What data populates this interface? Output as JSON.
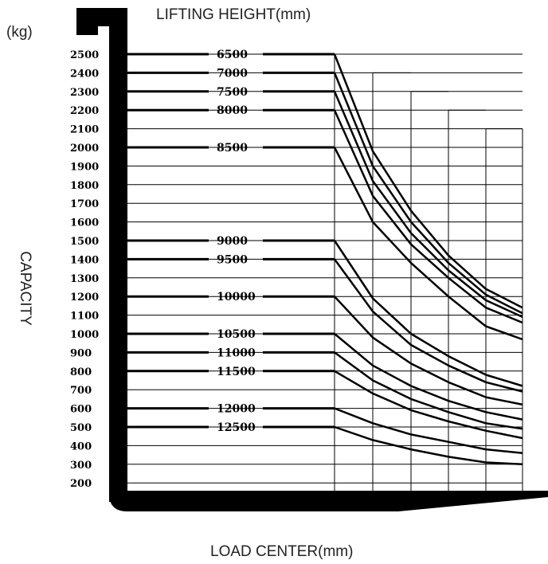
{
  "chart_data": {
    "type": "line",
    "title": "LIFTING HEIGHT(mm)",
    "ylabel": "CAPACITY",
    "yunit": "(kg)",
    "xlabel": "LOAD CENTER(mm)",
    "ylim": [
      200,
      2500
    ],
    "y_ticks": [
      2500,
      2400,
      2300,
      2200,
      2100,
      2000,
      1900,
      1800,
      1700,
      1600,
      1500,
      1400,
      1300,
      1200,
      1100,
      1000,
      900,
      800,
      700,
      600,
      500,
      400,
      300,
      200
    ],
    "grid": true,
    "series": [
      {
        "name": "6500",
        "values": [
          2500,
          1980,
          1660,
          1420,
          1240,
          1140
        ]
      },
      {
        "name": "7000",
        "values": [
          2400,
          1900,
          1600,
          1380,
          1210,
          1110
        ]
      },
      {
        "name": "7500",
        "values": [
          2300,
          1820,
          1540,
          1340,
          1180,
          1090
        ]
      },
      {
        "name": "8000",
        "values": [
          2200,
          1740,
          1480,
          1300,
          1140,
          1060
        ]
      },
      {
        "name": "8500",
        "values": [
          2000,
          1600,
          1380,
          1200,
          1040,
          970
        ]
      },
      {
        "name": "9000",
        "values": [
          1500,
          1190,
          1000,
          880,
          780,
          720
        ]
      },
      {
        "name": "9500",
        "values": [
          1400,
          1120,
          940,
          830,
          740,
          690
        ]
      },
      {
        "name": "10000",
        "values": [
          1200,
          980,
          840,
          740,
          660,
          620
        ]
      },
      {
        "name": "10500",
        "values": [
          1000,
          830,
          720,
          640,
          580,
          540
        ]
      },
      {
        "name": "11000",
        "values": [
          900,
          750,
          650,
          580,
          520,
          490
        ]
      },
      {
        "name": "11500",
        "values": [
          800,
          680,
          590,
          530,
          480,
          440
        ]
      },
      {
        "name": "12000",
        "values": [
          600,
          520,
          460,
          420,
          380,
          360
        ]
      },
      {
        "name": "12500",
        "values": [
          500,
          430,
          380,
          340,
          310,
          300
        ]
      }
    ]
  }
}
